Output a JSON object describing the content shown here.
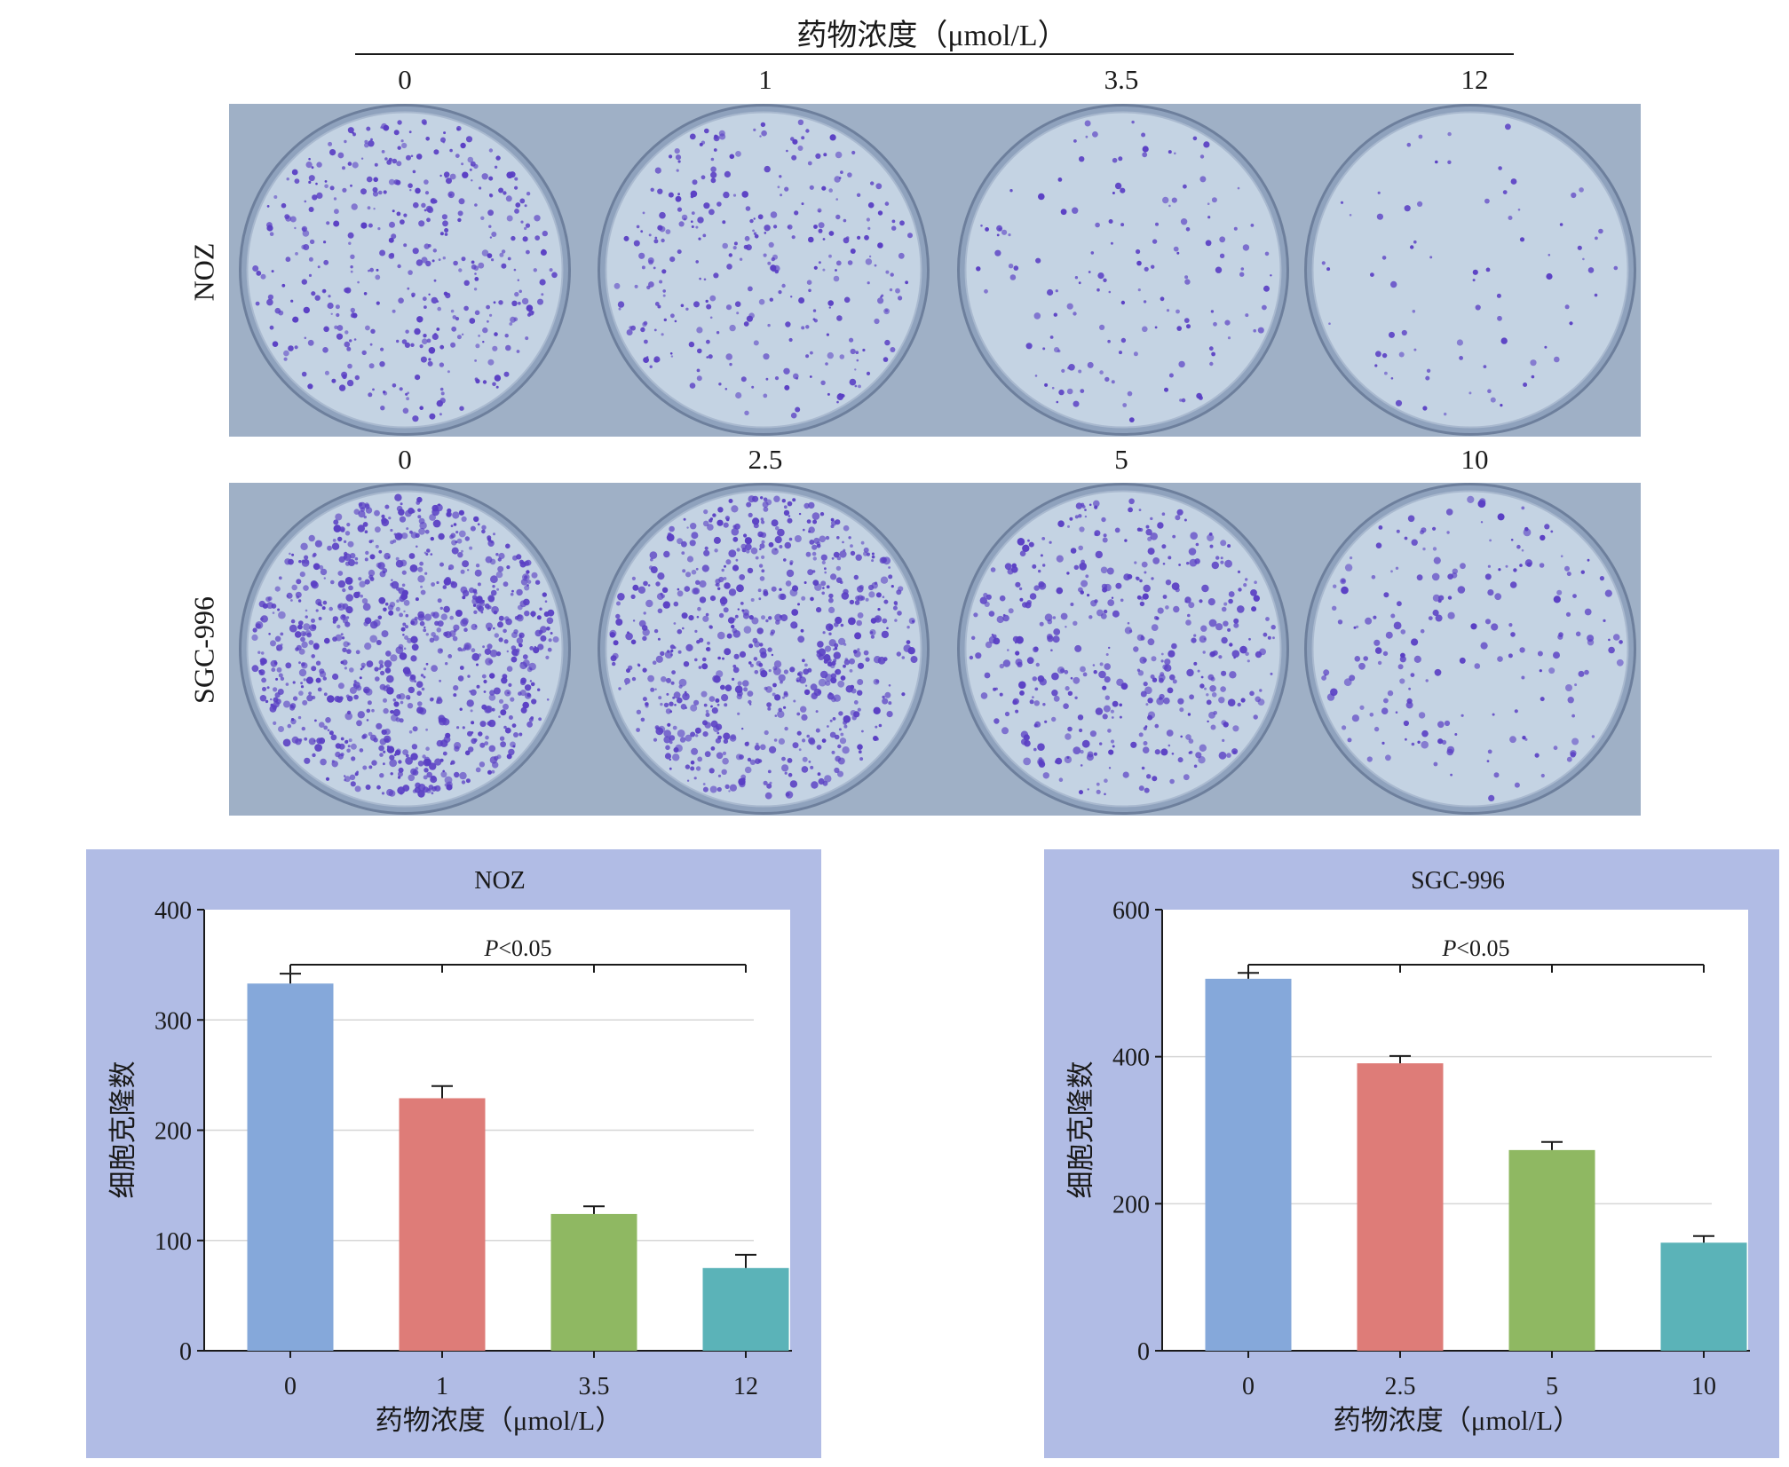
{
  "header": {
    "title": "药物浓度（μmol/L）"
  },
  "rows": [
    {
      "label": "NOZ",
      "concentrations": [
        "0",
        "1",
        "3.5",
        "12"
      ],
      "colony_density": [
        1.0,
        0.75,
        0.35,
        0.18
      ]
    },
    {
      "label": "SGC-996",
      "concentrations": [
        "0",
        "2.5",
        "5",
        "10"
      ],
      "colony_density": [
        1.0,
        0.8,
        0.5,
        0.22
      ]
    }
  ],
  "colors": {
    "panel_background": "#b1bce5",
    "plate_background": "#c4d3e3",
    "colony": "#5a3fc4",
    "bar_0": "#85a8da",
    "bar_1": "#de7c78",
    "bar_2": "#8fb862",
    "bar_3": "#5bb3b8"
  },
  "chart_data": [
    {
      "type": "bar",
      "title": "NOZ",
      "xlabel": "药物浓度（μmol/L）",
      "ylabel": "细胞克隆数",
      "categories": [
        "0",
        "1",
        "3.5",
        "12"
      ],
      "values": [
        333,
        229,
        124,
        75
      ],
      "errors": [
        9,
        11,
        7,
        12
      ],
      "ylim": [
        0,
        400
      ],
      "yticks": [
        "0",
        "100",
        "200",
        "300",
        "400"
      ],
      "annotation": "P<0.05",
      "grid": true
    },
    {
      "type": "bar",
      "title": "SGC-996",
      "xlabel": "药物浓度（μmol/L）",
      "ylabel": "细胞克隆数",
      "categories": [
        "0",
        "2.5",
        "5",
        "10"
      ],
      "values": [
        506,
        391,
        273,
        147
      ],
      "errors": [
        8,
        10,
        11,
        9
      ],
      "ylim": [
        0,
        600
      ],
      "yticks": [
        "0",
        "200",
        "400",
        "600"
      ],
      "annotation": "P<0.05",
      "grid": true
    }
  ]
}
